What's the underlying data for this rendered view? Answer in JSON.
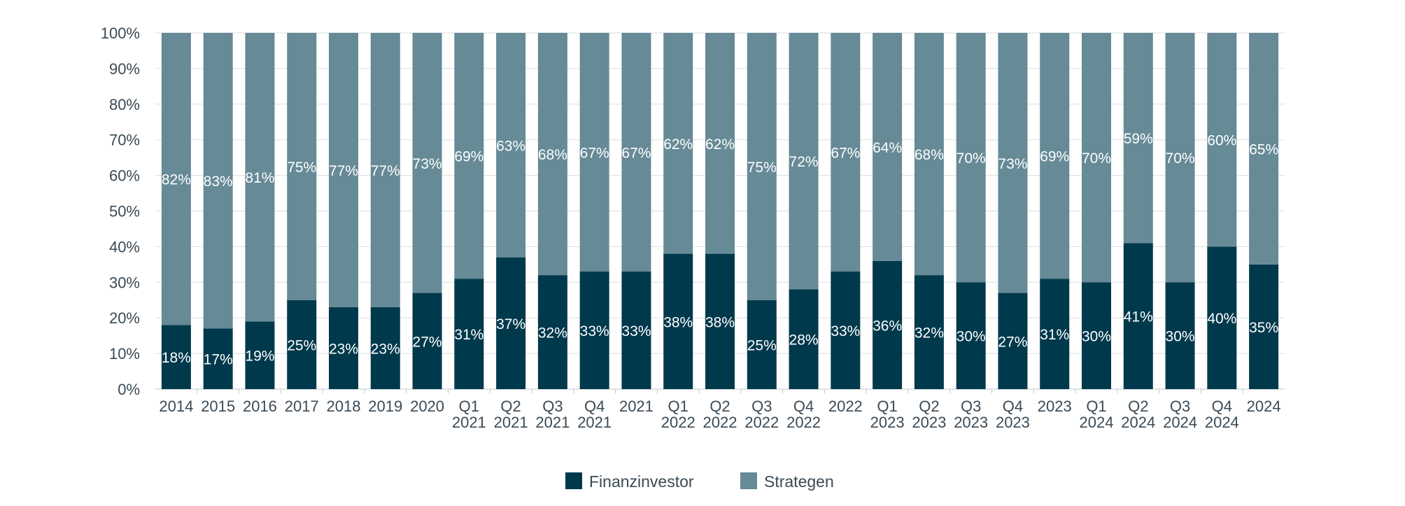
{
  "chart_data": {
    "type": "bar",
    "stacked": true,
    "title": "",
    "xlabel": "",
    "ylabel": "",
    "ylim": [
      0,
      100
    ],
    "y_ticks": [
      "0%",
      "10%",
      "20%",
      "30%",
      "40%",
      "50%",
      "60%",
      "70%",
      "80%",
      "90%",
      "100%"
    ],
    "grid": true,
    "legend_position": "bottom-center",
    "categories": [
      [
        "2014"
      ],
      [
        "2015"
      ],
      [
        "2016"
      ],
      [
        "2017"
      ],
      [
        "2018"
      ],
      [
        "2019"
      ],
      [
        "2020"
      ],
      [
        "Q1",
        "2021"
      ],
      [
        "Q2",
        "2021"
      ],
      [
        "Q3",
        "2021"
      ],
      [
        "Q4",
        "2021"
      ],
      [
        "2021"
      ],
      [
        "Q1",
        "2022"
      ],
      [
        "Q2",
        "2022"
      ],
      [
        "Q3",
        "2022"
      ],
      [
        "Q4",
        "2022"
      ],
      [
        "2022"
      ],
      [
        "Q1",
        "2023"
      ],
      [
        "Q2",
        "2023"
      ],
      [
        "Q3",
        "2023"
      ],
      [
        "Q4",
        "2023"
      ],
      [
        "2023"
      ],
      [
        "Q1",
        "2024"
      ],
      [
        "Q2",
        "2024"
      ],
      [
        "Q3",
        "2024"
      ],
      [
        "Q4",
        "2024"
      ],
      [
        "2024"
      ]
    ],
    "series": [
      {
        "name": "Finanzinvestor",
        "color": "#00394c",
        "values": [
          18,
          17,
          19,
          25,
          23,
          23,
          27,
          31,
          37,
          32,
          33,
          33,
          38,
          38,
          25,
          28,
          33,
          36,
          32,
          30,
          27,
          31,
          30,
          41,
          30,
          40,
          35
        ]
      },
      {
        "name": "Strategen",
        "color": "#668a96",
        "values": [
          82,
          83,
          81,
          75,
          77,
          77,
          73,
          69,
          63,
          68,
          67,
          67,
          62,
          62,
          75,
          72,
          67,
          64,
          68,
          70,
          73,
          69,
          70,
          59,
          70,
          60,
          65
        ]
      }
    ]
  }
}
